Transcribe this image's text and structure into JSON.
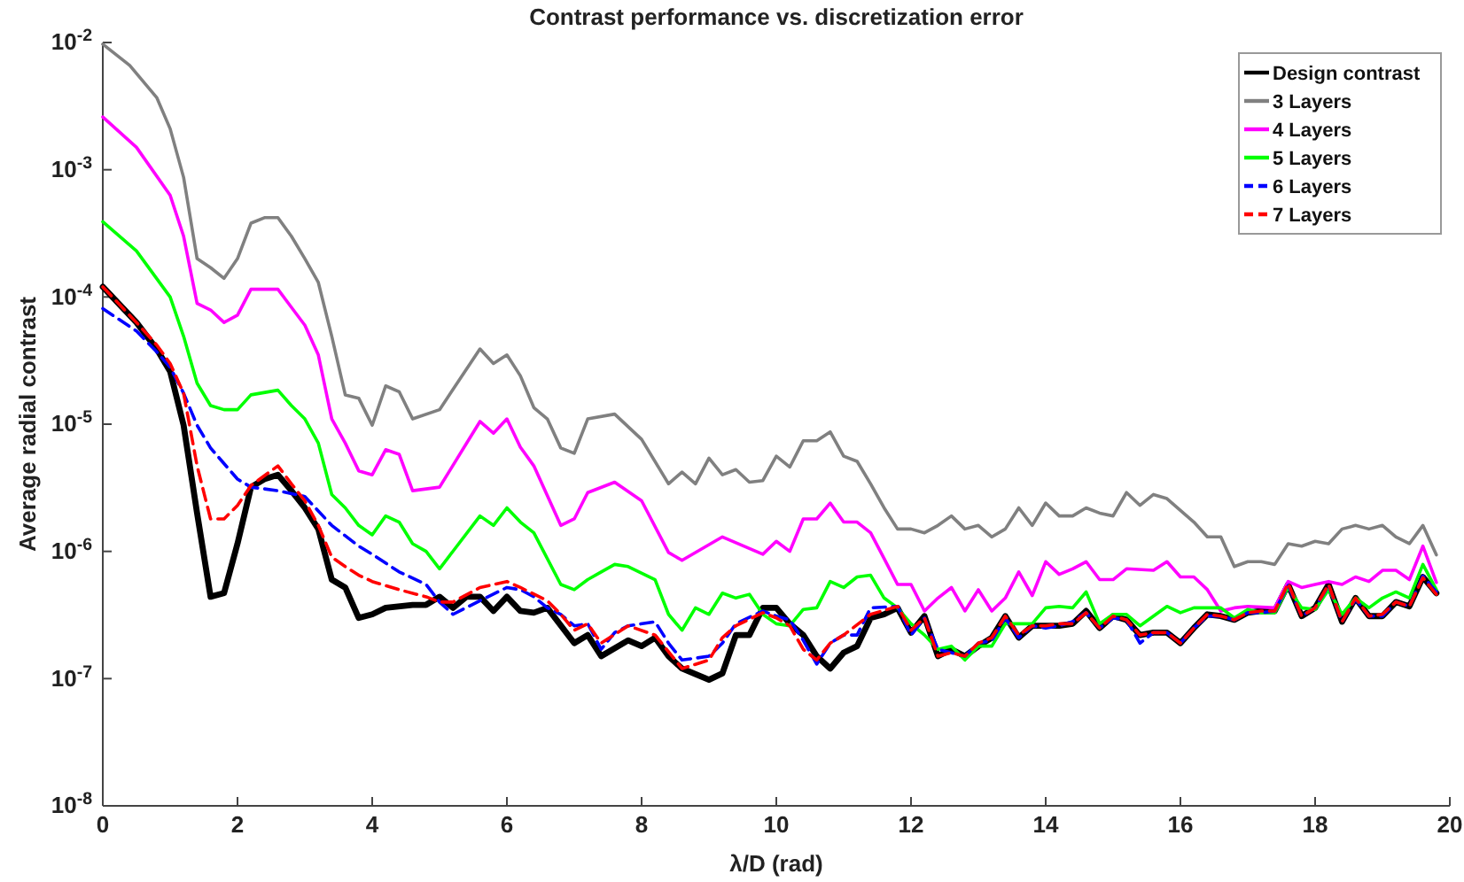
{
  "chart_data": {
    "type": "line",
    "title": "Contrast performance vs. discretization error",
    "xlabel": "λ/D (rad)",
    "ylabel": "Average radial contrast",
    "log": "y",
    "grid": false,
    "legend": "top right",
    "marker": "none",
    "xlim": [
      0,
      20
    ],
    "xticks": [
      0,
      2,
      4,
      6,
      8,
      10,
      12,
      14,
      16,
      18,
      20
    ],
    "ylim": [
      1e-08,
      0.01
    ],
    "yticks": [
      {
        "value": 1e-08,
        "label": "10$^{-8}$"
      },
      {
        "value": 1e-07,
        "label": "10$^{-7}$"
      },
      {
        "value": 1e-06,
        "label": "10$^{-6}$"
      },
      {
        "value": 1e-05,
        "label": "10$^{-5}$"
      },
      {
        "value": 0.0001,
        "label": "10$^{-4}$"
      },
      {
        "value": 0.001,
        "label": "10$^{-3}$"
      },
      {
        "value": 0.01,
        "label": "10$^{-2}$"
      }
    ],
    "series": [
      {
        "name": "Design contrast",
        "color": "#000000",
        "line_style": "solid",
        "x": [
          0,
          0.5,
          0.8,
          1.0,
          1.2,
          1.4,
          1.6,
          1.8,
          2.0,
          2.2,
          2.4,
          2.6,
          2.8,
          3.0,
          3.2,
          3.4,
          3.6,
          3.8,
          4.0,
          4.2,
          4.6,
          4.8,
          5.0,
          5.2,
          5.4,
          5.6,
          5.8,
          6.0,
          6.2,
          6.4,
          6.6,
          7.0,
          7.2,
          7.4,
          7.8,
          8.0,
          8.2,
          8.4,
          8.6,
          9.0,
          9.2,
          9.4,
          9.6,
          9.8,
          10.0,
          10.2,
          10.4,
          10.6,
          10.8,
          11.0,
          11.2,
          11.4,
          11.6,
          11.8,
          12.0,
          12.2,
          12.4,
          12.6,
          12.8,
          13.0,
          13.2,
          13.4,
          13.6,
          13.8,
          14.0,
          14.2,
          14.4,
          14.6,
          14.8,
          15.0,
          15.2,
          15.4,
          15.6,
          15.8,
          16.0,
          16.2,
          16.4,
          16.6,
          16.8,
          17.0,
          17.2,
          17.4,
          17.6,
          17.8,
          18.0,
          18.2,
          18.4,
          18.6,
          18.8,
          19.0,
          19.2,
          19.4,
          19.6,
          19.8
        ],
        "values": [
          0.00012,
          6.3e-05,
          3.9e-05,
          2.6e-05,
          9.8e-06,
          2e-06,
          4.4e-07,
          4.7e-07,
          1.15e-06,
          3.2e-06,
          3.7e-06,
          4e-06,
          3e-06,
          2.2e-06,
          1.5e-06,
          6e-07,
          5.2e-07,
          3e-07,
          3.2e-07,
          3.6e-07,
          3.8e-07,
          3.8e-07,
          4.4e-07,
          3.6e-07,
          4.4e-07,
          4.4e-07,
          3.4e-07,
          4.4e-07,
          3.4e-07,
          3.3e-07,
          3.6e-07,
          1.9e-07,
          2.2e-07,
          1.5e-07,
          2e-07,
          1.8e-07,
          2.1e-07,
          1.5e-07,
          1.2e-07,
          9.8e-08,
          1.1e-07,
          2.2e-07,
          2.2e-07,
          3.6e-07,
          3.6e-07,
          2.7e-07,
          2.2e-07,
          1.5e-07,
          1.2e-07,
          1.6e-07,
          1.8e-07,
          3e-07,
          3.2e-07,
          3.6e-07,
          2.3e-07,
          3.1e-07,
          1.5e-07,
          1.7e-07,
          1.5e-07,
          1.8e-07,
          2.1e-07,
          3.1e-07,
          2.1e-07,
          2.6e-07,
          2.6e-07,
          2.6e-07,
          2.7e-07,
          3.4e-07,
          2.5e-07,
          3.1e-07,
          2.9e-07,
          2.2e-07,
          2.3e-07,
          2.3e-07,
          1.9e-07,
          2.5e-07,
          3.2e-07,
          3.1e-07,
          2.9e-07,
          3.3e-07,
          3.4e-07,
          3.4e-07,
          5.5e-07,
          3.1e-07,
          3.6e-07,
          5.5e-07,
          2.8e-07,
          4.3e-07,
          3.1e-07,
          3.1e-07,
          4e-07,
          3.7e-07,
          6.3e-07,
          4.7e-07
        ]
      },
      {
        "name": "3 Layers",
        "color": "#808080",
        "line_style": "solid",
        "x": [
          0,
          0.4,
          0.8,
          1.0,
          1.2,
          1.4,
          1.6,
          1.8,
          2.0,
          2.2,
          2.4,
          2.6,
          2.8,
          3.0,
          3.2,
          3.4,
          3.6,
          3.8,
          4.0,
          4.2,
          4.4,
          4.6,
          5.0,
          5.6,
          5.8,
          6.0,
          6.2,
          6.4,
          6.6,
          6.8,
          7.0,
          7.2,
          7.6,
          8.0,
          8.4,
          8.6,
          8.8,
          9.0,
          9.2,
          9.4,
          9.6,
          9.8,
          10.0,
          10.2,
          10.4,
          10.6,
          10.8,
          11.0,
          11.2,
          11.4,
          11.6,
          11.8,
          12.0,
          12.2,
          12.4,
          12.6,
          12.8,
          13.0,
          13.2,
          13.4,
          13.6,
          13.8,
          14.0,
          14.2,
          14.4,
          14.6,
          14.8,
          15.0,
          15.2,
          15.4,
          15.6,
          15.8,
          16.0,
          16.2,
          16.4,
          16.6,
          16.8,
          17.0,
          17.2,
          17.4,
          17.6,
          17.8,
          18.0,
          18.2,
          18.4,
          18.6,
          18.8,
          19.0,
          19.2,
          19.4,
          19.6,
          19.8
        ],
        "values": [
          0.0097,
          0.0066,
          0.0037,
          0.0021,
          0.00087,
          0.0002,
          0.00017,
          0.00014,
          0.0002,
          0.00038,
          0.00042,
          0.00042,
          0.0003,
          0.0002,
          0.00013,
          4.9e-05,
          1.7e-05,
          1.6e-05,
          9.8e-06,
          2e-05,
          1.8e-05,
          1.1e-05,
          1.3e-05,
          3.9e-05,
          3e-05,
          3.5e-05,
          2.4e-05,
          1.35e-05,
          1.1e-05,
          6.5e-06,
          5.9e-06,
          1.1e-05,
          1.2e-05,
          7.6e-06,
          3.4e-06,
          4.2e-06,
          3.4e-06,
          5.4e-06,
          4e-06,
          4.4e-06,
          3.5e-06,
          3.6e-06,
          5.6e-06,
          4.6e-06,
          7.4e-06,
          7.4e-06,
          8.7e-06,
          5.6e-06,
          5.1e-06,
          3.4e-06,
          2.2e-06,
          1.5e-06,
          1.5e-06,
          1.4e-06,
          1.6e-06,
          1.9e-06,
          1.5e-06,
          1.6e-06,
          1.3e-06,
          1.5e-06,
          2.2e-06,
          1.6e-06,
          2.4e-06,
          1.9e-06,
          1.9e-06,
          2.2e-06,
          2e-06,
          1.9e-06,
          2.9e-06,
          2.3e-06,
          2.8e-06,
          2.6e-06,
          2.1e-06,
          1.7e-06,
          1.3e-06,
          1.3e-06,
          7.6e-07,
          8.3e-07,
          8.3e-07,
          7.9e-07,
          1.15e-06,
          1.1e-06,
          1.2e-06,
          1.15e-06,
          1.5e-06,
          1.6e-06,
          1.5e-06,
          1.6e-06,
          1.3e-06,
          1.15e-06,
          1.6e-06,
          9.4e-07
        ]
      },
      {
        "name": "4 Layers",
        "color": "#ff00ff",
        "line_style": "solid",
        "x": [
          0,
          0.5,
          1.0,
          1.2,
          1.4,
          1.6,
          1.8,
          2.0,
          2.2,
          2.6,
          2.8,
          3.0,
          3.2,
          3.4,
          3.6,
          3.8,
          4.0,
          4.2,
          4.4,
          4.6,
          5.0,
          5.6,
          5.8,
          6.0,
          6.2,
          6.4,
          6.8,
          7.0,
          7.2,
          7.6,
          8.0,
          8.4,
          8.6,
          9.2,
          9.8,
          10.0,
          10.2,
          10.4,
          10.6,
          10.8,
          11.0,
          11.2,
          11.4,
          11.6,
          11.8,
          12.0,
          12.2,
          12.4,
          12.6,
          12.8,
          13.0,
          13.2,
          13.4,
          13.6,
          13.8,
          14.0,
          14.2,
          14.4,
          14.6,
          14.8,
          15.0,
          15.2,
          15.6,
          15.8,
          16.0,
          16.2,
          16.4,
          16.6,
          16.8,
          17.0,
          17.4,
          17.6,
          17.8,
          18.0,
          18.2,
          18.4,
          18.6,
          18.8,
          19.0,
          19.2,
          19.4,
          19.6,
          19.8
        ],
        "values": [
          0.0026,
          0.0015,
          0.00063,
          0.0003,
          8.9e-05,
          7.9e-05,
          6.3e-05,
          7.2e-05,
          0.000115,
          0.000115,
          8.3e-05,
          6e-05,
          3.5e-05,
          1.1e-05,
          7.1e-06,
          4.3e-06,
          4e-06,
          6.3e-06,
          5.8e-06,
          3e-06,
          3.2e-06,
          1.05e-05,
          8.5e-06,
          1.1e-05,
          6.6e-06,
          4.7e-06,
          1.6e-06,
          1.8e-06,
          2.9e-06,
          3.5e-06,
          2.5e-06,
          9.8e-07,
          8.5e-07,
          1.3e-06,
          9.5e-07,
          1.2e-06,
          1e-06,
          1.8e-06,
          1.8e-06,
          2.4e-06,
          1.7e-06,
          1.7e-06,
          1.4e-06,
          8.8e-07,
          5.5e-07,
          5.5e-07,
          3.4e-07,
          4.3e-07,
          5.2e-07,
          3.4e-07,
          5e-07,
          3.4e-07,
          4.3e-07,
          6.9e-07,
          4.5e-07,
          8.3e-07,
          6.6e-07,
          7.3e-07,
          8.3e-07,
          6e-07,
          6e-07,
          7.3e-07,
          7.1e-07,
          8.3e-07,
          6.3e-07,
          6.3e-07,
          5e-07,
          3.4e-07,
          3.6e-07,
          3.7e-07,
          3.6e-07,
          5.8e-07,
          5.2e-07,
          5.5e-07,
          5.8e-07,
          5.5e-07,
          6.3e-07,
          5.8e-07,
          7.1e-07,
          7.1e-07,
          6e-07,
          1.1e-06,
          5.7e-07
        ]
      },
      {
        "name": "5 Layers",
        "color": "#00ff00",
        "line_style": "solid",
        "x": [
          0,
          0.5,
          1.0,
          1.2,
          1.4,
          1.6,
          1.8,
          2.0,
          2.2,
          2.6,
          2.8,
          3.0,
          3.2,
          3.4,
          3.6,
          3.8,
          4.0,
          4.2,
          4.4,
          4.6,
          4.8,
          5.0,
          5.6,
          5.8,
          6.0,
          6.2,
          6.4,
          6.8,
          7.0,
          7.2,
          7.4,
          7.6,
          7.8,
          8.2,
          8.4,
          8.6,
          8.8,
          9.0,
          9.2,
          9.4,
          9.6,
          9.8,
          10.0,
          10.2,
          10.4,
          10.6,
          10.8,
          11.0,
          11.2,
          11.4,
          11.6,
          11.8,
          12.0,
          12.2,
          12.4,
          12.6,
          12.8,
          13.0,
          13.2,
          13.4,
          13.6,
          13.8,
          14.0,
          14.2,
          14.4,
          14.6,
          14.8,
          15.0,
          15.2,
          15.4,
          15.8,
          16.0,
          16.2,
          16.6,
          16.8,
          17.0,
          17.2,
          17.4,
          17.6,
          17.8,
          18.0,
          18.2,
          18.4,
          18.6,
          18.8,
          19.0,
          19.2,
          19.4,
          19.6,
          19.8
        ],
        "values": [
          0.00039,
          0.00023,
          0.0001,
          4.9e-05,
          2.1e-05,
          1.4e-05,
          1.3e-05,
          1.3e-05,
          1.7e-05,
          1.85e-05,
          1.4e-05,
          1.1e-05,
          7.1e-06,
          2.8e-06,
          2.2e-06,
          1.6e-06,
          1.35e-06,
          1.9e-06,
          1.7e-06,
          1.15e-06,
          1e-06,
          7.3e-07,
          1.9e-06,
          1.6e-06,
          2.2e-06,
          1.7e-06,
          1.4e-06,
          5.5e-07,
          5e-07,
          6e-07,
          6.9e-07,
          7.9e-07,
          7.6e-07,
          6e-07,
          3.2e-07,
          2.4e-07,
          3.6e-07,
          3.2e-07,
          4.7e-07,
          4.3e-07,
          4.6e-07,
          3.2e-07,
          2.7e-07,
          2.6e-07,
          3.5e-07,
          3.6e-07,
          5.8e-07,
          5.2e-07,
          6.3e-07,
          6.5e-07,
          4.3e-07,
          3.6e-07,
          2.7e-07,
          2.2e-07,
          1.7e-07,
          1.8e-07,
          1.4e-07,
          1.8e-07,
          1.8e-07,
          2.7e-07,
          2.7e-07,
          2.7e-07,
          3.6e-07,
          3.7e-07,
          3.6e-07,
          4.8e-07,
          2.7e-07,
          3.2e-07,
          3.2e-07,
          2.6e-07,
          3.7e-07,
          3.3e-07,
          3.6e-07,
          3.6e-07,
          3e-07,
          3.5e-07,
          3.3e-07,
          3.3e-07,
          5.2e-07,
          3.6e-07,
          3.5e-07,
          5e-07,
          3.2e-07,
          4.3e-07,
          3.6e-07,
          4.3e-07,
          4.8e-07,
          4.3e-07,
          7.9e-07,
          5e-07
        ]
      },
      {
        "name": "6 Layers",
        "color": "#0000ff",
        "line_style": "dashed",
        "x": [
          0,
          0.5,
          0.8,
          1.0,
          1.2,
          1.4,
          1.6,
          1.8,
          2.0,
          2.2,
          2.6,
          3.0,
          3.4,
          3.8,
          4.0,
          4.4,
          4.8,
          5.0,
          5.2,
          5.6,
          6.0,
          6.2,
          6.4,
          6.6,
          6.8,
          7.0,
          7.2,
          7.4,
          7.6,
          7.8,
          8.2,
          8.4,
          8.6,
          9.0,
          9.2,
          9.4,
          9.8,
          10.0,
          10.2,
          10.4,
          10.6,
          10.8,
          11.0,
          11.2,
          11.4,
          11.8,
          12.0,
          12.2,
          12.4,
          12.8,
          13.0,
          13.2,
          13.4,
          13.6,
          13.8,
          14.0,
          14.2,
          14.4,
          14.6,
          14.8,
          15.0,
          15.2,
          15.4,
          15.6,
          15.8,
          16.0,
          16.2,
          16.4,
          16.6,
          16.8,
          17.0,
          17.2,
          17.4,
          17.6,
          17.8,
          18.0,
          18.2,
          18.4,
          18.6,
          18.8,
          19.0,
          19.2,
          19.4,
          19.6,
          19.8
        ],
        "values": [
          8.1e-05,
          5.4e-05,
          3.7e-05,
          2.8e-05,
          1.75e-05,
          9.8e-06,
          6.5e-06,
          4.9e-06,
          3.7e-06,
          3.2e-06,
          3e-06,
          2.7e-06,
          1.6e-06,
          1.1e-06,
          9.5e-07,
          6.9e-07,
          5.5e-07,
          4e-07,
          3.2e-07,
          4.1e-07,
          5.2e-07,
          5e-07,
          4.4e-07,
          3.6e-07,
          3.2e-07,
          2.6e-07,
          2.7e-07,
          1.7e-07,
          2.3e-07,
          2.6e-07,
          2.8e-07,
          1.9e-07,
          1.4e-07,
          1.5e-07,
          1.9e-07,
          2.7e-07,
          3.4e-07,
          3.1e-07,
          2.9e-07,
          2e-07,
          1.3e-07,
          1.9e-07,
          2.2e-07,
          2.2e-07,
          3.6e-07,
          3.7e-07,
          2.2e-07,
          3e-07,
          1.7e-07,
          1.5e-07,
          1.9e-07,
          2e-07,
          3e-07,
          2.1e-07,
          2.6e-07,
          2.5e-07,
          2.6e-07,
          2.8e-07,
          3.3e-07,
          2.5e-07,
          3e-07,
          2.9e-07,
          1.9e-07,
          2.3e-07,
          2.3e-07,
          1.9e-07,
          2.5e-07,
          3.1e-07,
          3.1e-07,
          2.9e-07,
          3.3e-07,
          3.3e-07,
          3.4e-07,
          5.4e-07,
          3.1e-07,
          3.6e-07,
          5.4e-07,
          2.8e-07,
          4.2e-07,
          3.1e-07,
          3.1e-07,
          4e-07,
          3.7e-07,
          6.4e-07,
          4.8e-07
        ]
      },
      {
        "name": "7 Layers",
        "color": "#ff0000",
        "line_style": "dashed",
        "x": [
          0,
          0.5,
          0.8,
          1.0,
          1.2,
          1.4,
          1.6,
          1.8,
          2.0,
          2.2,
          2.6,
          2.8,
          3.0,
          3.2,
          3.4,
          3.6,
          3.8,
          4.0,
          4.4,
          4.8,
          5.0,
          5.2,
          5.6,
          6.0,
          6.2,
          6.6,
          6.8,
          7.0,
          7.2,
          7.4,
          7.8,
          8.2,
          8.6,
          9.0,
          9.2,
          9.4,
          9.8,
          10.0,
          10.2,
          10.4,
          10.6,
          10.8,
          11.0,
          11.4,
          11.8,
          12.0,
          12.2,
          12.4,
          12.6,
          12.8,
          13.0,
          13.2,
          13.4,
          13.6,
          13.8,
          14.0,
          14.2,
          14.4,
          14.6,
          14.8,
          15.0,
          15.2,
          15.4,
          15.6,
          15.8,
          16.0,
          16.2,
          16.4,
          16.6,
          16.8,
          17.0,
          17.2,
          17.4,
          17.6,
          17.8,
          18.0,
          18.2,
          18.4,
          18.6,
          18.8,
          19.0,
          19.2,
          19.4,
          19.6,
          19.8
        ],
        "values": [
          0.00012,
          6.3e-05,
          4.2e-05,
          3e-05,
          1.75e-05,
          4.7e-06,
          1.8e-06,
          1.8e-06,
          2.3e-06,
          3.3e-06,
          4.7e-06,
          3.4e-06,
          2.5e-06,
          1.6e-06,
          9e-07,
          7.6e-07,
          6.5e-07,
          5.8e-07,
          5e-07,
          4.4e-07,
          4e-07,
          4e-07,
          5.2e-07,
          5.8e-07,
          5.2e-07,
          4.1e-07,
          3.2e-07,
          2.4e-07,
          2.7e-07,
          1.9e-07,
          2.6e-07,
          2.2e-07,
          1.2e-07,
          1.4e-07,
          2.1e-07,
          2.6e-07,
          3.3e-07,
          3e-07,
          2.6e-07,
          1.7e-07,
          1.4e-07,
          1.9e-07,
          2.2e-07,
          3.2e-07,
          3.7e-07,
          2.4e-07,
          3e-07,
          1.5e-07,
          1.6e-07,
          1.5e-07,
          1.9e-07,
          2.1e-07,
          3.1e-07,
          2.2e-07,
          2.6e-07,
          2.6e-07,
          2.7e-07,
          2.7e-07,
          3.3e-07,
          2.5e-07,
          3.1e-07,
          2.9e-07,
          2.2e-07,
          2.3e-07,
          2.3e-07,
          1.9e-07,
          2.5e-07,
          3.2e-07,
          3.1e-07,
          2.9e-07,
          3.3e-07,
          3.4e-07,
          3.4e-07,
          5.6e-07,
          3.1e-07,
          3.6e-07,
          5.5e-07,
          2.8e-07,
          4.3e-07,
          3.1e-07,
          3.2e-07,
          4e-07,
          3.7e-07,
          6.2e-07,
          4.6e-07
        ]
      }
    ]
  }
}
